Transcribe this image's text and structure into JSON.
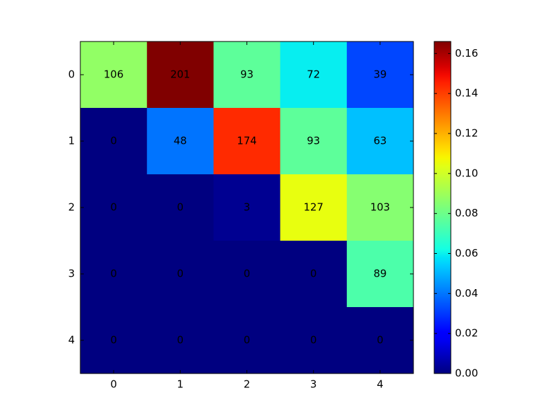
{
  "chart_data": {
    "type": "heatmap",
    "x": [
      0,
      1,
      2,
      3,
      4
    ],
    "y": [
      0,
      1,
      2,
      3,
      4
    ],
    "values": [
      [
        106,
        201,
        93,
        72,
        39
      ],
      [
        0,
        48,
        174,
        93,
        63
      ],
      [
        0,
        0,
        3,
        127,
        103
      ],
      [
        0,
        0,
        0,
        0,
        89
      ],
      [
        0,
        0,
        0,
        0,
        0
      ]
    ],
    "xticks": [
      0,
      1,
      2,
      3,
      4
    ],
    "yticks": [
      0,
      1,
      2,
      3,
      4
    ],
    "colormap": "jet",
    "color_normalization": "fraction_of_total",
    "clim": [
      0,
      0.166
    ],
    "cticks": [
      {
        "value": 0,
        "label": "0.00"
      },
      {
        "value": 0.02,
        "label": "0.02"
      },
      {
        "value": 0.04,
        "label": "0.04"
      },
      {
        "value": 0.06,
        "label": "0.06"
      },
      {
        "value": 0.08,
        "label": "0.08"
      },
      {
        "value": 0.1,
        "label": "0.10"
      },
      {
        "value": 0.12,
        "label": "0.12"
      },
      {
        "value": 0.14,
        "label": "0.14"
      },
      {
        "value": 0.16,
        "label": "0.16"
      }
    ]
  }
}
